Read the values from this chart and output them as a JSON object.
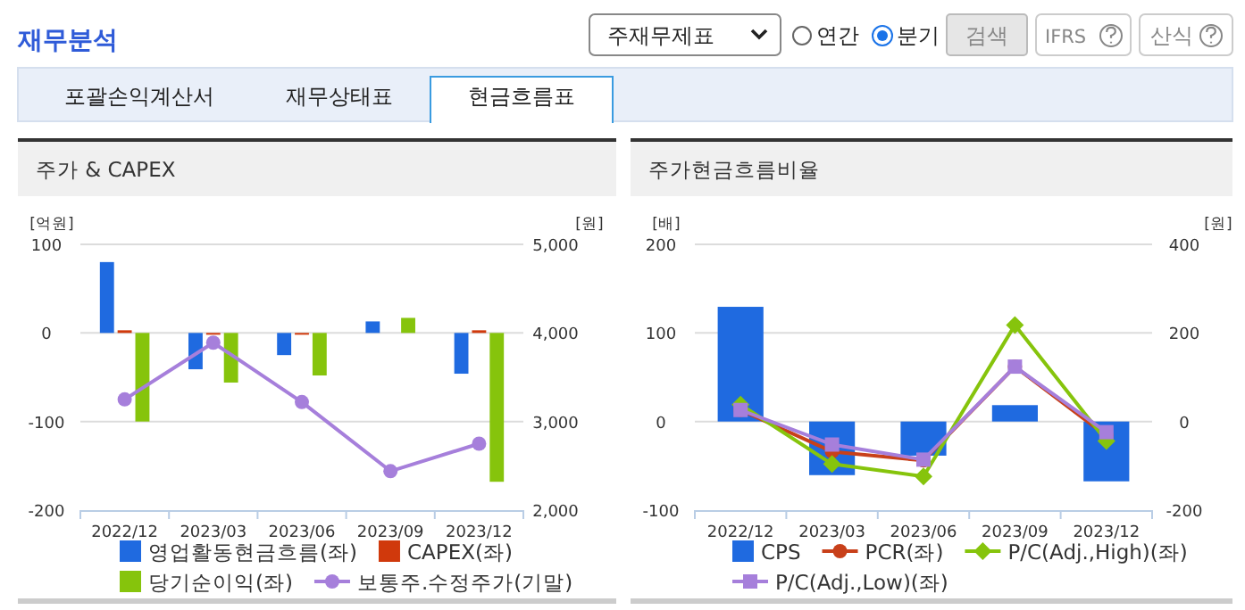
{
  "chart_data": [
    {
      "type": "bar",
      "title": "주가 & CAPEX",
      "ylabel": "[억원]",
      "y2label": "[원]",
      "annotations": [
        "재무분석",
        "주재무제표",
        "연간",
        "분기",
        "검색",
        "IFRS",
        "산식",
        "포괄손익계산서",
        "재무상태표",
        "현금흐름표"
      ],
      "categories": [
        "2022/12",
        "2023/03",
        "2023/06",
        "2023/09",
        "2023/12"
      ],
      "series": [
        {
          "name": "영업활동현금흐름(좌)",
          "color": "#1f6ae0",
          "values": [
            80,
            -41,
            -25,
            13,
            -46
          ]
        },
        {
          "name": "CAPEX(좌)",
          "color": "#d0390c",
          "values": [
            3,
            -2,
            -2,
            null,
            3
          ]
        },
        {
          "name": "당기순이익(좌)",
          "color": "#86c40c",
          "values": [
            -100,
            -56,
            -48,
            17,
            -168
          ]
        },
        {
          "name": "보통주.수정주가(기말)",
          "type": "line",
          "axis": "y2",
          "marker": "circle",
          "color": "#a67fdb",
          "values": [
            3250,
            3890,
            3220,
            2440,
            2750
          ]
        }
      ],
      "ylim": [
        -200,
        100
      ],
      "yticks": [
        -200,
        -100,
        0,
        100
      ],
      "y2lim": [
        2000,
        5000
      ],
      "y2ticks": [
        {
          "value": 2000,
          "label": "2,000"
        },
        {
          "value": 3000,
          "label": "3,000"
        },
        {
          "value": 4000,
          "label": "4,000"
        },
        {
          "value": 5000,
          "label": "5,000"
        }
      ],
      "grid": "y",
      "legend": "bottom"
    },
    {
      "type": "bar",
      "title": "주가현금흐름비율",
      "ylabel": "[배]",
      "y2label": "[원]",
      "categories": [
        "2022/12",
        "2023/03",
        "2023/06",
        "2023/09",
        "2023/12"
      ],
      "series": [
        {
          "name": "CPS",
          "color": "#1f6ae0",
          "axis": "y2",
          "values": [
            259,
            -121,
            -77,
            37,
            -135
          ]
        },
        {
          "name": "PCR(좌)",
          "type": "line",
          "marker": "circle",
          "color": "#c8401a",
          "values": [
            13,
            -34,
            -44,
            62,
            -16
          ]
        },
        {
          "name": "P/C(Adj.,High)(좌)",
          "type": "line",
          "marker": "diamond",
          "color": "#86c40c",
          "values": [
            19,
            -48,
            -62,
            109,
            -22
          ]
        },
        {
          "name": "P/C(Adj.,Low)(좌)",
          "type": "line",
          "marker": "square",
          "color": "#a67fdb",
          "values": [
            13,
            -26,
            -43,
            62,
            -12
          ]
        }
      ],
      "ylim": [
        -100,
        200
      ],
      "yticks": [
        -100,
        0,
        100,
        200
      ],
      "y2lim": [
        -200,
        400
      ],
      "y2ticks": [
        -200,
        0,
        200,
        400
      ],
      "grid": "y",
      "legend": "bottom"
    }
  ]
}
